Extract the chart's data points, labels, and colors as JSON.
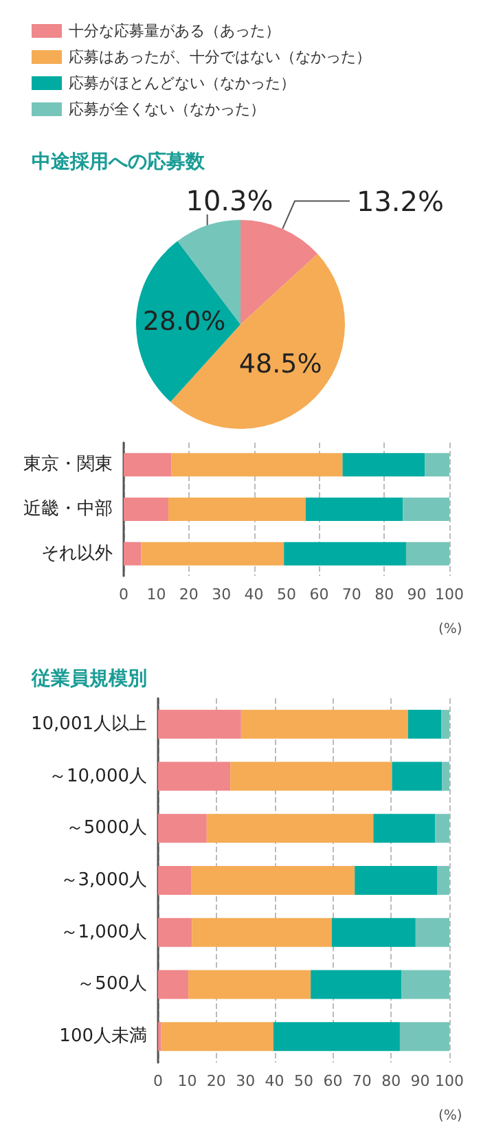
{
  "chart_data": [
    {
      "type": "pie",
      "title": "中途採用への応募数",
      "categories": [
        "十分な応募量がある（あった）",
        "応募はあったが、十分ではない（なかった）",
        "応募がほとんどない（なかった）",
        "応募が全くない（なかった）"
      ],
      "values": [
        13.2,
        48.5,
        28.0,
        10.3
      ],
      "colors": [
        "#ef878b",
        "#f5ac55",
        "#00aba1",
        "#76c5ba"
      ],
      "value_labels": [
        "13.2%",
        "48.5%",
        "28.0%",
        "10.3%"
      ],
      "legend": "top left"
    },
    {
      "type": "bar",
      "orientation": "horizontal",
      "stacked": true,
      "categories": [
        "東京・関東",
        "近畿・中部",
        "それ以外"
      ],
      "series": [
        {
          "color": "#ef878b",
          "values": [
            14.7,
            13.7,
            5.4
          ]
        },
        {
          "color": "#f5ac55",
          "values": [
            52.5,
            42.2,
            43.8
          ]
        },
        {
          "color": "#00aba1",
          "values": [
            25.3,
            29.8,
            37.5
          ]
        },
        {
          "color": "#76c5ba",
          "values": [
            7.5,
            14.3,
            13.3
          ]
        }
      ],
      "xlim": [
        0,
        100
      ],
      "xticks": [
        0,
        10,
        20,
        30,
        40,
        50,
        60,
        70,
        80,
        90,
        100
      ],
      "xlabel": "(%)",
      "grid": "x"
    },
    {
      "type": "bar",
      "orientation": "horizontal",
      "stacked": true,
      "title": "従業員規模別",
      "categories": [
        "10,001人以上",
        "～10,000人",
        "～5000人",
        "～3,000人",
        "～1,000人",
        "～500人",
        "100人未満"
      ],
      "series": [
        {
          "color": "#ef878b",
          "values": [
            28.5,
            24.8,
            16.7,
            11.5,
            11.6,
            10.4,
            1.1
          ]
        },
        {
          "color": "#f5ac55",
          "values": [
            57.3,
            55.5,
            57.2,
            56.0,
            48.0,
            42.0,
            38.5
          ]
        },
        {
          "color": "#00aba1",
          "values": [
            11.4,
            17.2,
            21.2,
            28.4,
            28.8,
            31.2,
            43.4
          ]
        },
        {
          "color": "#76c5ba",
          "values": [
            2.8,
            2.5,
            4.9,
            4.1,
            11.6,
            16.4,
            17.0
          ]
        }
      ],
      "xlim": [
        0,
        100
      ],
      "xticks": [
        0,
        10,
        20,
        30,
        40,
        50,
        60,
        70,
        80,
        90,
        100
      ],
      "xlabel": "(%)",
      "grid": "x"
    }
  ]
}
